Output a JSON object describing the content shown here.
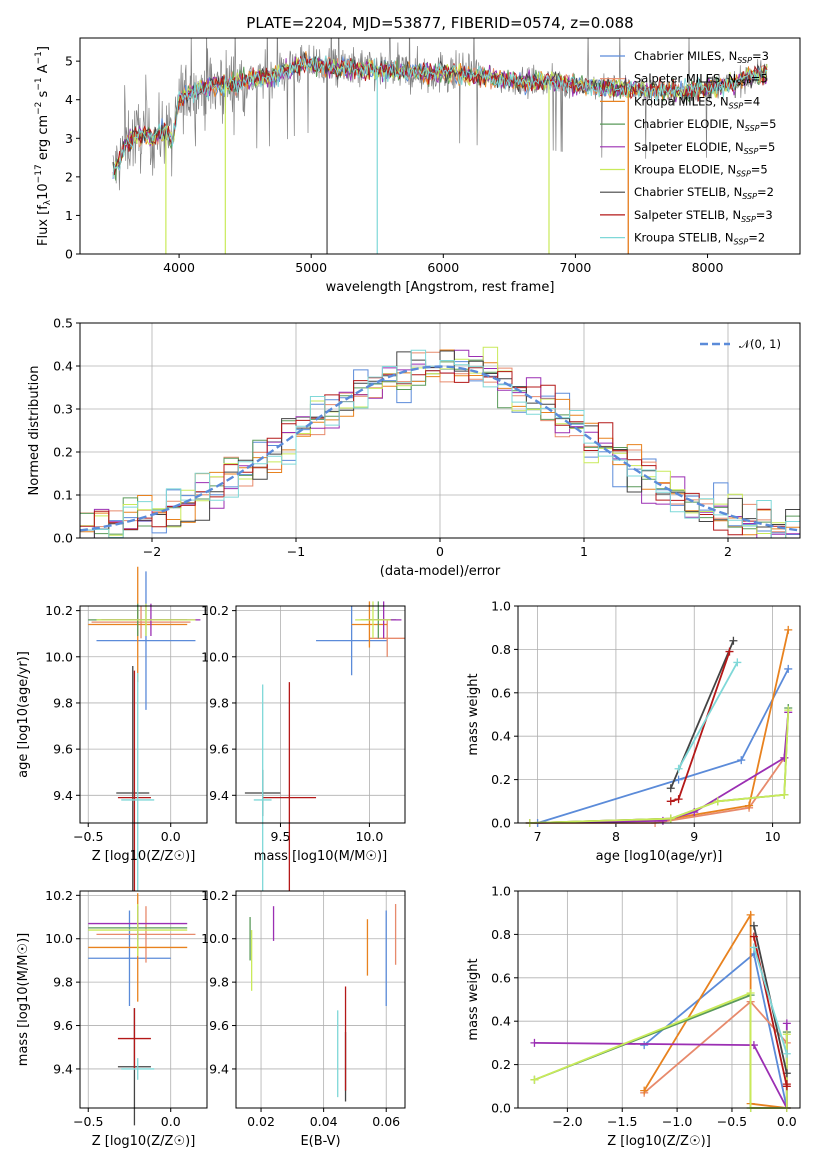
{
  "figure_title": "PLATE=2204, MJD=53877, FIBERID=0574, z=0.088",
  "colors": {
    "Chabrier MILES": "#5b8bd9",
    "Salpeter MILES": "#e78a6c",
    "Kroupa MILES": "#e8821f",
    "Chabrier ELODIE": "#5a9a5a",
    "Salpeter ELODIE": "#9b2fb3",
    "Kroupa ELODIE": "#c9ea5a",
    "Chabrier STELIB": "#444444",
    "Salpeter STELIB": "#b41818",
    "Kroupa STELIB": "#7fd8d8",
    "normal": "#5b8bd9",
    "data": "#808080"
  },
  "chart_data": [
    {
      "id": "spectrum",
      "type": "line",
      "xlabel": "wavelength [Angstrom, rest frame]",
      "ylabel": "Flux [f_λ 10^-17 erg cm^-2 s^-1 A^-1]",
      "xlim": [
        3250,
        8700
      ],
      "ylim": [
        0,
        5.6
      ],
      "xticks": [
        "4000",
        "5000",
        "6000",
        "7000",
        "8000"
      ],
      "yticks": [
        "0",
        "1",
        "2",
        "3",
        "4",
        "5"
      ],
      "continuum": {
        "x": [
          3500,
          3550,
          3600,
          3700,
          3800,
          3900,
          3950,
          4000,
          4050,
          4100,
          4200,
          4300,
          4400,
          4500,
          4700,
          4900,
          5000,
          5200,
          5400,
          5600,
          5800,
          6000,
          6200,
          6400,
          6600,
          6800,
          7000,
          7200,
          7400,
          7600,
          7800,
          8000,
          8200,
          8300,
          8450
        ],
        "y": [
          2.1,
          2.4,
          2.9,
          3.1,
          3.0,
          3.2,
          2.9,
          4.0,
          4.1,
          4.2,
          4.3,
          4.4,
          4.4,
          4.5,
          4.6,
          4.9,
          4.95,
          4.8,
          4.8,
          4.75,
          4.7,
          4.7,
          4.65,
          4.55,
          4.45,
          4.5,
          4.4,
          4.3,
          4.3,
          4.25,
          4.2,
          4.3,
          4.4,
          4.6,
          4.7
        ]
      },
      "series": [
        {
          "name": "Chabrier MILES, N_SSP=3",
          "color_key": "Chabrier MILES"
        },
        {
          "name": "Salpeter MILES, N_SSP=5",
          "color_key": "Salpeter MILES"
        },
        {
          "name": "Kroupa MILES, N_SSP=4",
          "color_key": "Kroupa MILES"
        },
        {
          "name": "Chabrier ELODIE, N_SSP=5",
          "color_key": "Chabrier ELODIE"
        },
        {
          "name": "Salpeter ELODIE, N_SSP=5",
          "color_key": "Salpeter ELODIE"
        },
        {
          "name": "Kroupa ELODIE, N_SSP=5",
          "color_key": "Kroupa ELODIE"
        },
        {
          "name": "Chabrier STELIB, N_SSP=2",
          "color_key": "Chabrier STELIB"
        },
        {
          "name": "Salpeter STELIB, N_SSP=3",
          "color_key": "Salpeter STELIB"
        },
        {
          "name": "Kroupa STELIB, N_SSP=2",
          "color_key": "Kroupa STELIB"
        }
      ]
    },
    {
      "id": "residuals",
      "type": "line",
      "xlabel": "(data-model)/error",
      "ylabel": "Normed distribution",
      "xlim": [
        -2.5,
        2.5
      ],
      "ylim": [
        0,
        0.5
      ],
      "xticks": [
        "−2",
        "−1",
        "0",
        "1",
        "2"
      ],
      "yticks": [
        "0.0",
        "0.1",
        "0.2",
        "0.3",
        "0.4",
        "0.5"
      ],
      "legend": "𝒩(0, 1)",
      "bin_width": 0.1
    },
    {
      "id": "age_vs_Z",
      "type": "scatter",
      "xlabel": "Z [log10(Z/Z☉)]",
      "ylabel": "age [log10(age/yr)]",
      "xlim": [
        -0.55,
        0.22
      ],
      "ylim": [
        9.28,
        10.22
      ],
      "xticks": [
        "−0.5",
        "0.0"
      ],
      "yticks": [
        "9.4",
        "9.6",
        "9.8",
        "10.0",
        "10.2"
      ],
      "points": [
        {
          "color_key": "Chabrier MILES",
          "x": -0.15,
          "xerr": 0.3,
          "y": 10.07,
          "yerr": 0.3
        },
        {
          "color_key": "Salpeter MILES",
          "x": -0.18,
          "xerr": 0.3,
          "y": 10.15,
          "yerr": 0.07
        },
        {
          "color_key": "Kroupa MILES",
          "x": -0.2,
          "xerr": 0.3,
          "y": 10.14,
          "yerr": 0.25
        },
        {
          "color_key": "Chabrier ELODIE",
          "x": -0.2,
          "xerr": 0.3,
          "y": 10.16,
          "yerr": 0.07
        },
        {
          "color_key": "Salpeter ELODIE",
          "x": -0.12,
          "xerr": 0.3,
          "y": 10.16,
          "yerr": 0.07
        },
        {
          "color_key": "Kroupa ELODIE",
          "x": -0.15,
          "xerr": 0.3,
          "y": 10.16,
          "yerr": 0.07
        },
        {
          "color_key": "Chabrier STELIB",
          "x": -0.23,
          "xerr": 0.1,
          "y": 9.41,
          "yerr": 0.55
        },
        {
          "color_key": "Salpeter STELIB",
          "x": -0.22,
          "xerr": 0.1,
          "y": 9.39,
          "yerr": 0.55
        },
        {
          "color_key": "Kroupa STELIB",
          "x": -0.2,
          "xerr": 0.1,
          "y": 9.38,
          "yerr": 0.55
        }
      ]
    },
    {
      "id": "age_vs_mass",
      "type": "scatter",
      "xlabel": "mass [log10(M/M☉)]",
      "ylabel": "",
      "xlim": [
        9.25,
        10.2
      ],
      "ylim": [
        9.28,
        10.22
      ],
      "xticks": [
        "9.5",
        "10.0"
      ],
      "yticks": [
        "9.4",
        "9.6",
        "9.8",
        "10.0",
        "10.2"
      ],
      "points": [
        {
          "color_key": "Chabrier MILES",
          "x": 9.9,
          "xerr": 0.2,
          "y": 10.07,
          "yerr": 0.15
        },
        {
          "color_key": "Salpeter MILES",
          "x": 10.1,
          "xerr": 0.1,
          "y": 10.08,
          "yerr": 0.08
        },
        {
          "color_key": "Kroupa MILES",
          "x": 10.0,
          "xerr": 0.1,
          "y": 10.14,
          "yerr": 0.1
        },
        {
          "color_key": "Chabrier ELODIE",
          "x": 10.05,
          "xerr": 0.1,
          "y": 10.16,
          "yerr": 0.08
        },
        {
          "color_key": "Salpeter ELODIE",
          "x": 10.08,
          "xerr": 0.1,
          "y": 10.16,
          "yerr": 0.08
        },
        {
          "color_key": "Kroupa ELODIE",
          "x": 10.02,
          "xerr": 0.1,
          "y": 10.16,
          "yerr": 0.08
        },
        {
          "color_key": "Chabrier STELIB",
          "x": 9.4,
          "xerr": 0.1,
          "y": 9.41,
          "yerr": 0.1
        },
        {
          "color_key": "Salpeter STELIB",
          "x": 9.55,
          "xerr": 0.15,
          "y": 9.39,
          "yerr": 0.5
        },
        {
          "color_key": "Kroupa STELIB",
          "x": 9.4,
          "xerr": 0.05,
          "y": 9.38,
          "yerr": 0.5
        }
      ]
    },
    {
      "id": "massweight_vs_age",
      "type": "line",
      "xlabel": "age [log10(age/yr)]",
      "ylabel": "mass weight",
      "xlim": [
        6.75,
        10.35
      ],
      "ylim": [
        0,
        1
      ],
      "xticks": [
        "7",
        "8",
        "9",
        "10"
      ],
      "yticks": [
        "0.0",
        "0.2",
        "0.4",
        "0.6",
        "0.8",
        "1.0"
      ],
      "series": [
        {
          "color_key": "Chabrier MILES",
          "x": [
            7.0,
            8.8,
            9.6,
            10.2
          ],
          "y": [
            0.0,
            0.2,
            0.29,
            0.71
          ]
        },
        {
          "color_key": "Salpeter MILES",
          "x": [
            6.9,
            8.5,
            9.7,
            10.15
          ],
          "y": [
            0.0,
            0.0,
            0.07,
            0.3
          ]
        },
        {
          "color_key": "Kroupa MILES",
          "x": [
            6.9,
            8.7,
            9.7,
            10.2
          ],
          "y": [
            0.0,
            0.02,
            0.08,
            0.89
          ]
        },
        {
          "color_key": "Chabrier ELODIE",
          "x": [
            6.9,
            8.7,
            9.3,
            10.15,
            10.2
          ],
          "y": [
            0.0,
            0.02,
            0.1,
            0.13,
            0.53
          ]
        },
        {
          "color_key": "Salpeter ELODIE",
          "x": [
            6.9,
            8.6,
            9.0,
            10.15,
            10.2
          ],
          "y": [
            0.0,
            0.01,
            0.05,
            0.3,
            0.51
          ]
        },
        {
          "color_key": "Kroupa ELODIE",
          "x": [
            6.9,
            8.7,
            9.3,
            10.15,
            10.2
          ],
          "y": [
            0.0,
            0.02,
            0.1,
            0.13,
            0.52
          ]
        },
        {
          "color_key": "Chabrier STELIB",
          "x": [
            8.7,
            9.5
          ],
          "y": [
            0.16,
            0.84
          ]
        },
        {
          "color_key": "Salpeter STELIB",
          "x": [
            8.7,
            8.8,
            9.45
          ],
          "y": [
            0.1,
            0.11,
            0.79
          ]
        },
        {
          "color_key": "Kroupa STELIB",
          "x": [
            8.8,
            9.55
          ],
          "y": [
            0.25,
            0.74
          ]
        }
      ]
    },
    {
      "id": "mass_vs_Z",
      "type": "scatter",
      "xlabel": "Z [log10(Z/Z☉)]",
      "ylabel": "mass [log10(M/M☉)]",
      "xlim": [
        -0.55,
        0.22
      ],
      "ylim": [
        9.22,
        10.22
      ],
      "xticks": [
        "−0.5",
        "0.0"
      ],
      "yticks": [
        "9.4",
        "9.6",
        "9.8",
        "10.0",
        "10.2"
      ],
      "points": [
        {
          "color_key": "Chabrier MILES",
          "x": -0.25,
          "xerr": 0.25,
          "y": 9.91,
          "yerr": 0.22
        },
        {
          "color_key": "Salpeter MILES",
          "x": -0.15,
          "xerr": 0.3,
          "y": 10.02,
          "yerr": 0.13
        },
        {
          "color_key": "Kroupa MILES",
          "x": -0.2,
          "xerr": 0.3,
          "y": 9.96,
          "yerr": 0.25
        },
        {
          "color_key": "Chabrier ELODIE",
          "x": -0.2,
          "xerr": 0.3,
          "y": 10.05,
          "yerr": 0.1
        },
        {
          "color_key": "Salpeter ELODIE",
          "x": -0.2,
          "xerr": 0.3,
          "y": 10.07,
          "yerr": 0.08
        },
        {
          "color_key": "Kroupa ELODIE",
          "x": -0.2,
          "xerr": 0.3,
          "y": 10.04,
          "yerr": 0.12
        },
        {
          "color_key": "Chabrier STELIB",
          "x": -0.22,
          "xerr": 0.1,
          "y": 9.41,
          "yerr": 0.27
        },
        {
          "color_key": "Salpeter STELIB",
          "x": -0.22,
          "xerr": 0.1,
          "y": 9.54,
          "yerr": 0.14
        },
        {
          "color_key": "Kroupa STELIB",
          "x": -0.2,
          "xerr": 0.1,
          "y": 9.4,
          "yerr": 0.05
        }
      ]
    },
    {
      "id": "mass_vs_ebv",
      "type": "scatter",
      "xlabel": "E(B-V)",
      "ylabel": "",
      "xlim": [
        0.012,
        0.066
      ],
      "ylim": [
        9.22,
        10.22
      ],
      "xticks": [
        "0.02",
        "0.04",
        "0.06"
      ],
      "yticks": [
        "9.4",
        "9.6",
        "9.8",
        "10.0",
        "10.2"
      ],
      "points": [
        {
          "color_key": "Chabrier MILES",
          "x": 0.06,
          "y": 9.91,
          "yerr": 0.22
        },
        {
          "color_key": "Salpeter MILES",
          "x": 0.063,
          "y": 10.02,
          "yerr": 0.14
        },
        {
          "color_key": "Kroupa MILES",
          "x": 0.054,
          "y": 9.96,
          "yerr": 0.13
        },
        {
          "color_key": "Chabrier ELODIE",
          "x": 0.0165,
          "y": 10.0,
          "yerr": 0.1
        },
        {
          "color_key": "Salpeter ELODIE",
          "x": 0.024,
          "y": 10.07,
          "yerr": 0.08
        },
        {
          "color_key": "Kroupa ELODIE",
          "x": 0.017,
          "y": 9.9,
          "yerr": 0.14
        },
        {
          "color_key": "Chabrier STELIB",
          "x": 0.047,
          "y": 9.41,
          "yerr": 0.16
        },
        {
          "color_key": "Salpeter STELIB",
          "x": 0.047,
          "y": 9.54,
          "yerr": 0.24
        },
        {
          "color_key": "Kroupa STELIB",
          "x": 0.0445,
          "y": 9.47,
          "yerr": 0.2
        }
      ]
    },
    {
      "id": "massweight_vs_Z",
      "type": "line",
      "xlabel": "Z [log10(Z/Z☉)]",
      "ylabel": "mass weight",
      "xlim": [
        -2.45,
        0.12
      ],
      "ylim": [
        0,
        1
      ],
      "xticks": [
        "−2.0",
        "−1.5",
        "−1.0",
        "−0.5",
        "0.0"
      ],
      "yticks": [
        "0.0",
        "0.2",
        "0.4",
        "0.6",
        "0.8",
        "1.0"
      ],
      "series": [
        {
          "color_key": "Chabrier MILES",
          "x": [
            -1.3,
            -0.3,
            0.0
          ],
          "y": [
            0.29,
            0.71,
            0.0
          ]
        },
        {
          "color_key": "Salpeter MILES",
          "x": [
            -1.3,
            -0.33,
            0.0
          ],
          "y": [
            0.07,
            0.49,
            0.3
          ]
        },
        {
          "color_key": "Kroupa MILES",
          "x": [
            -1.3,
            -0.33,
            -0.33,
            0.0
          ],
          "y": [
            0.08,
            0.89,
            0.02,
            0.0
          ]
        },
        {
          "color_key": "Chabrier ELODIE",
          "x": [
            -2.3,
            -0.33,
            -0.33,
            0.0,
            0.0
          ],
          "y": [
            0.13,
            0.52,
            0.0,
            0.0,
            0.35
          ]
        },
        {
          "color_key": "Salpeter ELODIE",
          "x": [
            -2.3,
            -0.3,
            0.0,
            0.0
          ],
          "y": [
            0.3,
            0.29,
            0.0,
            0.39
          ]
        },
        {
          "color_key": "Kroupa ELODIE",
          "x": [
            -2.3,
            -0.33,
            -0.33,
            0.0,
            0.0
          ],
          "y": [
            0.13,
            0.53,
            0.0,
            0.0,
            0.34
          ]
        },
        {
          "color_key": "Chabrier STELIB",
          "x": [
            -0.3,
            0.0
          ],
          "y": [
            0.84,
            0.16
          ]
        },
        {
          "color_key": "Salpeter STELIB",
          "x": [
            -0.3,
            0.0,
            0.0
          ],
          "y": [
            0.79,
            0.1,
            0.11
          ]
        },
        {
          "color_key": "Kroupa STELIB",
          "x": [
            -0.3,
            0.0
          ],
          "y": [
            0.74,
            0.25
          ]
        }
      ]
    }
  ]
}
